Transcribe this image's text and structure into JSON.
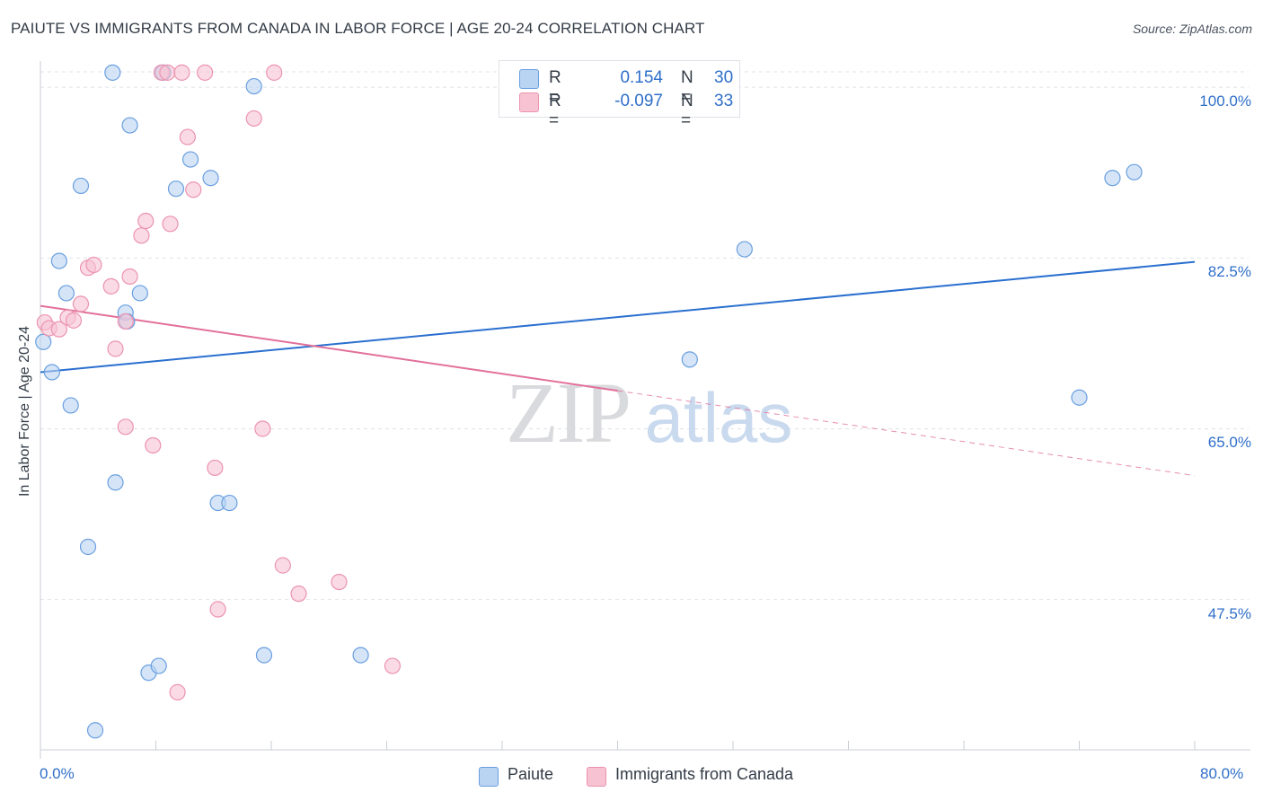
{
  "header": {
    "title": "PAIUTE VS IMMIGRANTS FROM CANADA IN LABOR FORCE | AGE 20-24 CORRELATION CHART",
    "source": "Source: ZipAtlas.com"
  },
  "watermark": {
    "zip": "ZIP",
    "atlas": "atlas"
  },
  "colors": {
    "paiute_fill": "#b9d3f2",
    "paiute_stroke": "#6a9fe0",
    "paiute_line": "#2a6fcf",
    "canada_fill": "#f7c3d3",
    "canada_stroke": "#ec93af",
    "canada_line": "#e2709a",
    "axis_text": "#2f6fc9",
    "grid": "#dfe3e8"
  },
  "legend_top": {
    "rows": [
      {
        "r_label": "R =",
        "r_value": "0.154",
        "n_label": "N =",
        "n_value": "30"
      },
      {
        "r_label": "R =",
        "r_value": "-0.097",
        "n_label": "N =",
        "n_value": "33"
      }
    ]
  },
  "legend_bottom": {
    "items": [
      "Paiute",
      "Immigrants from Canada"
    ]
  },
  "chart_data": {
    "type": "scatter",
    "title": "PAIUTE VS IMMIGRANTS FROM CANADA IN LABOR FORCE | AGE 20-24 CORRELATION CHART",
    "xlabel": "",
    "ylabel": "In Labor Force | Age 20-24",
    "xlim": [
      0,
      80
    ],
    "ylim": [
      32.1,
      102.5
    ],
    "x_tick_labels": [
      "0.0%",
      "80.0%"
    ],
    "y_ticks": [
      100.0,
      82.5,
      65.0,
      47.5
    ],
    "y_tick_labels": [
      "100.0%",
      "82.5%",
      "65.0%",
      "47.5%"
    ],
    "grid": "horizontal dashed",
    "legend_placement": "bottom",
    "series": [
      {
        "name": "Paiute",
        "r": 0.154,
        "n": 30,
        "trend": {
          "x": [
            0,
            80
          ],
          "y": [
            70.8,
            82.1
          ],
          "dashed_from": null
        },
        "points": [
          [
            0.2,
            73.9
          ],
          [
            0.8,
            70.8
          ],
          [
            1.3,
            82.2
          ],
          [
            1.8,
            78.9
          ],
          [
            2.1,
            67.4
          ],
          [
            2.8,
            89.9
          ],
          [
            3.3,
            52.9
          ],
          [
            3.8,
            34.1
          ],
          [
            5.0,
            101.5
          ],
          [
            5.2,
            59.5
          ],
          [
            5.9,
            76.9
          ],
          [
            6.0,
            76.0
          ],
          [
            6.2,
            96.1
          ],
          [
            6.9,
            78.9
          ],
          [
            7.5,
            40.0
          ],
          [
            8.2,
            40.7
          ],
          [
            8.5,
            101.5
          ],
          [
            9.4,
            89.6
          ],
          [
            10.4,
            92.6
          ],
          [
            11.8,
            90.7
          ],
          [
            12.3,
            57.4
          ],
          [
            13.1,
            57.4
          ],
          [
            14.8,
            100.1
          ],
          [
            15.5,
            41.8
          ],
          [
            22.2,
            41.8
          ],
          [
            48.8,
            83.4
          ],
          [
            45.0,
            72.1
          ],
          [
            72.0,
            68.2
          ],
          [
            74.3,
            90.7
          ],
          [
            75.8,
            91.3
          ]
        ]
      },
      {
        "name": "Immigrants from Canada",
        "r": -0.097,
        "n": 33,
        "trend": {
          "x": [
            0,
            80
          ],
          "y": [
            77.6,
            60.2
          ],
          "dashed_from": 40
        },
        "points": [
          [
            0.3,
            75.9
          ],
          [
            0.6,
            75.3
          ],
          [
            1.3,
            75.2
          ],
          [
            1.9,
            76.4
          ],
          [
            2.3,
            76.1
          ],
          [
            2.8,
            77.8
          ],
          [
            3.3,
            81.5
          ],
          [
            3.7,
            81.8
          ],
          [
            4.9,
            79.6
          ],
          [
            5.2,
            73.2
          ],
          [
            5.9,
            76.0
          ],
          [
            5.9,
            65.2
          ],
          [
            6.2,
            80.6
          ],
          [
            7.0,
            84.8
          ],
          [
            7.3,
            86.3
          ],
          [
            7.8,
            63.3
          ],
          [
            8.4,
            101.5
          ],
          [
            8.8,
            101.5
          ],
          [
            9.0,
            86.0
          ],
          [
            9.5,
            38.0
          ],
          [
            9.8,
            101.5
          ],
          [
            10.2,
            94.9
          ],
          [
            10.6,
            89.5
          ],
          [
            11.4,
            101.5
          ],
          [
            12.1,
            61.0
          ],
          [
            12.3,
            46.5
          ],
          [
            14.8,
            96.8
          ],
          [
            15.4,
            65.0
          ],
          [
            16.2,
            101.5
          ],
          [
            16.8,
            51.0
          ],
          [
            17.9,
            48.1
          ],
          [
            20.7,
            49.3
          ],
          [
            24.4,
            40.7
          ]
        ]
      }
    ]
  }
}
